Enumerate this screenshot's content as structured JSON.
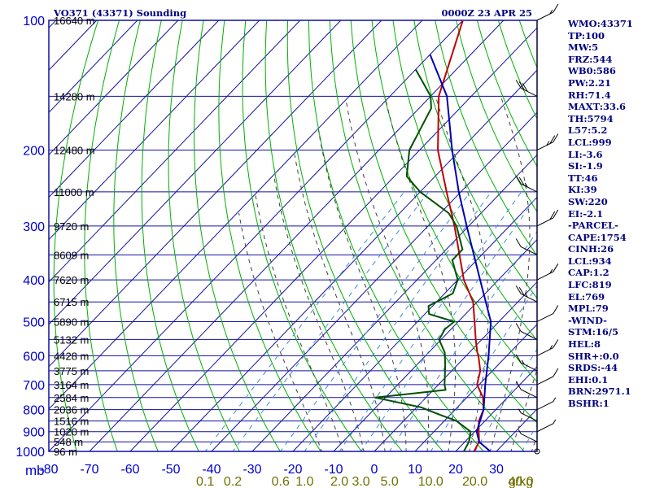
{
  "header": {
    "station": "VO371 (43371) Sounding",
    "valid_time": "0000Z 23 APR 25"
  },
  "indices": [
    "WMO:43371",
    "TP:100",
    "MW:5",
    "FRZ:544",
    "WB0:586",
    "PW:2.21",
    "RH:71.4",
    "MAXT:33.6",
    "TH:5794",
    "L57:5.2",
    "LCL:999",
    "LI:-3.6",
    "SI:-1.9",
    "TT:46",
    "KI:39",
    "SW:220",
    "EI:-2.1",
    "-PARCEL-",
    "CAPE:1754",
    "CINH:26",
    "LCL:934",
    "CAP:1.2",
    "LFC:819",
    "EL:769",
    "MPL:79",
    "-WIND-",
    "STM:16/5",
    "HEL:8",
    "SHR+:0.0",
    "SRDS:-44",
    "EHI:0.1",
    "BRN:2971.1",
    "BSHR:1"
  ],
  "colors": {
    "grid": "#1010a0",
    "dry_adiabat": "#00b000",
    "moist_adiabat": "#404040",
    "mixing_ratio": "#4090d0",
    "temperature": "#c00000",
    "dewpoint": "#005000",
    "parcel": "#0000b0",
    "axis_text": "#0000cc",
    "mixing_text": "#707000",
    "wind": "#000000"
  },
  "chart_data": {
    "type": "line",
    "title": "VO371 (43371) Sounding",
    "xlabel": "",
    "ylabel": "mb",
    "pressure_ticks": [
      100,
      200,
      300,
      400,
      500,
      600,
      700,
      800,
      900,
      1000
    ],
    "pressure_tick_labels": [
      "100",
      "200",
      "300",
      "400",
      "500",
      "600",
      "700",
      "800",
      "900",
      "1000"
    ],
    "ylim": [
      100,
      1000
    ],
    "y_scale": "log",
    "temperature_ticks": [
      -80,
      -70,
      -60,
      -50,
      -40,
      -30,
      -20,
      -10,
      0,
      10,
      20,
      30
    ],
    "temperature_tick_labels": [
      "-80",
      "-70",
      "-60",
      "-50",
      "-40",
      "-30",
      "-20",
      "-10",
      "0",
      "10",
      "20",
      "30"
    ],
    "xlim": [
      -80,
      40
    ],
    "height_labels": [
      {
        "p": 100,
        "label": "16640 m"
      },
      {
        "p": 150,
        "label": "14280 m"
      },
      {
        "p": 200,
        "label": "12480 m"
      },
      {
        "p": 250,
        "label": "11000 m"
      },
      {
        "p": 300,
        "label": "9720 m"
      },
      {
        "p": 350,
        "label": "8609 m"
      },
      {
        "p": 400,
        "label": "7620 m"
      },
      {
        "p": 450,
        "label": "6715 m"
      },
      {
        "p": 500,
        "label": "5890 m"
      },
      {
        "p": 550,
        "label": "5132 m"
      },
      {
        "p": 600,
        "label": "4428 m"
      },
      {
        "p": 650,
        "label": "3775 m"
      },
      {
        "p": 700,
        "label": "3164 m"
      },
      {
        "p": 750,
        "label": "2584 m"
      },
      {
        "p": 800,
        "label": "2036 m"
      },
      {
        "p": 850,
        "label": "1516 m"
      },
      {
        "p": 900,
        "label": "1020 m"
      },
      {
        "p": 950,
        "label": "548 m"
      },
      {
        "p": 1000,
        "label": "96 m"
      }
    ],
    "mixing_ratio_labels": [
      "0.1",
      "0.2",
      "0.6",
      "1.0",
      "2.0",
      "3.0",
      "5.0",
      "10.0",
      "20.0",
      "40.0",
      "g/kg"
    ],
    "series": [
      {
        "key": "temperature",
        "values": [
          {
            "p": 100,
            "t": -80
          },
          {
            "p": 150,
            "t": -68
          },
          {
            "p": 200,
            "t": -55.5
          },
          {
            "p": 250,
            "t": -43.5
          },
          {
            "p": 300,
            "t": -33.5
          },
          {
            "p": 400,
            "t": -18.5
          },
          {
            "p": 450,
            "t": -11
          },
          {
            "p": 500,
            "t": -6
          },
          {
            "p": 550,
            "t": -1.5
          },
          {
            "p": 590,
            "t": 2
          },
          {
            "p": 600,
            "t": 3
          },
          {
            "p": 650,
            "t": 7
          },
          {
            "p": 700,
            "t": 9.5
          },
          {
            "p": 750,
            "t": 14
          },
          {
            "p": 800,
            "t": 17
          },
          {
            "p": 850,
            "t": 18.5
          },
          {
            "p": 900,
            "t": 21
          },
          {
            "p": 950,
            "t": 23.5
          },
          {
            "p": 1000,
            "t": 24.5
          }
        ]
      },
      {
        "key": "dewpoint",
        "values": [
          {
            "p": 130,
            "t": -80
          },
          {
            "p": 150,
            "t": -70
          },
          {
            "p": 160,
            "t": -67
          },
          {
            "p": 200,
            "t": -62.5
          },
          {
            "p": 230,
            "t": -57
          },
          {
            "p": 250,
            "t": -50
          },
          {
            "p": 280,
            "t": -38
          },
          {
            "p": 300,
            "t": -33
          },
          {
            "p": 340,
            "t": -26
          },
          {
            "p": 360,
            "t": -26
          },
          {
            "p": 400,
            "t": -20
          },
          {
            "p": 430,
            "t": -18
          },
          {
            "p": 460,
            "t": -21
          },
          {
            "p": 480,
            "t": -19
          },
          {
            "p": 500,
            "t": -11
          },
          {
            "p": 520,
            "t": -11.5
          },
          {
            "p": 550,
            "t": -10.5
          },
          {
            "p": 590,
            "t": -6
          },
          {
            "p": 630,
            "t": -3
          },
          {
            "p": 660,
            "t": -1
          },
          {
            "p": 700,
            "t": 1.5
          },
          {
            "p": 720,
            "t": 3
          },
          {
            "p": 750,
            "t": -12.5
          },
          {
            "p": 790,
            "t": 1
          },
          {
            "p": 820,
            "t": 7
          },
          {
            "p": 850,
            "t": 13
          },
          {
            "p": 900,
            "t": 19
          },
          {
            "p": 950,
            "t": 21
          },
          {
            "p": 1000,
            "t": 22
          }
        ]
      },
      {
        "key": "parcel",
        "values": [
          {
            "p": 120,
            "t": -80
          },
          {
            "p": 150,
            "t": -66
          },
          {
            "p": 200,
            "t": -52
          },
          {
            "p": 250,
            "t": -40.5
          },
          {
            "p": 300,
            "t": -30.5
          },
          {
            "p": 400,
            "t": -14.5
          },
          {
            "p": 500,
            "t": -2
          },
          {
            "p": 600,
            "t": 5.5
          },
          {
            "p": 700,
            "t": 11.5
          },
          {
            "p": 800,
            "t": 17
          },
          {
            "p": 900,
            "t": 20.5
          },
          {
            "p": 950,
            "t": 23.5
          },
          {
            "p": 1000,
            "t": 28.5
          }
        ]
      }
    ],
    "wind_barbs": [
      {
        "p": 100,
        "kt": 15
      },
      {
        "p": 150,
        "kt": 30
      },
      {
        "p": 200,
        "kt": 25
      },
      {
        "p": 250,
        "kt": 25
      },
      {
        "p": 300,
        "kt": 20
      },
      {
        "p": 350,
        "kt": 10
      },
      {
        "p": 400,
        "kt": 15
      },
      {
        "p": 450,
        "kt": 25
      },
      {
        "p": 500,
        "kt": 10
      },
      {
        "p": 550,
        "kt": 10
      },
      {
        "p": 600,
        "kt": 15
      },
      {
        "p": 650,
        "kt": 15
      },
      {
        "p": 700,
        "kt": 10
      },
      {
        "p": 750,
        "kt": 10
      },
      {
        "p": 800,
        "kt": 5
      },
      {
        "p": 850,
        "kt": 5
      },
      {
        "p": 900,
        "kt": 5
      },
      {
        "p": 950,
        "kt": 5
      },
      {
        "p": 1000,
        "kt": 0
      }
    ]
  }
}
